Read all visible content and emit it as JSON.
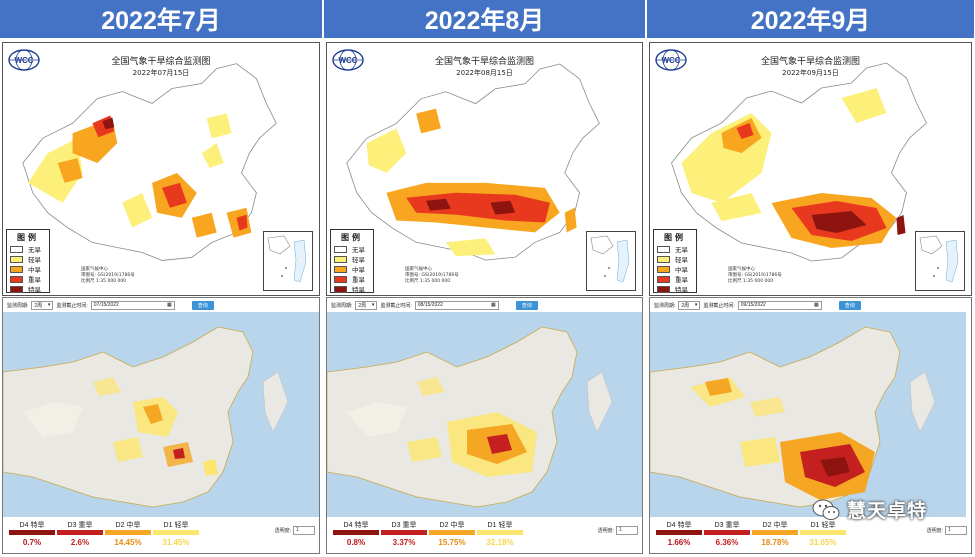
{
  "panels": [
    {
      "header": "2022年7月",
      "map_title": "全国气象干旱综合监测图",
      "map_date": "2022年07月15日",
      "credit": [
        "国家气候中心",
        "审图号: GS(2019)1786号",
        "比例尺 1:35 000 000"
      ],
      "form": {
        "label_period": "监测周期:",
        "period_value": "2周",
        "label_end": "监测截止时间:",
        "end_date": "07/15/2022",
        "query": "查询"
      },
      "bottom_values": [
        "0.7%",
        "2.6%",
        "14.45%",
        "31.45%"
      ]
    },
    {
      "header": "2022年8月",
      "map_title": "全国气象干旱综合监测图",
      "map_date": "2022年08月15日",
      "credit": [
        "国家气候中心",
        "审图号: GS(2019)1786号",
        "比例尺 1:35 000 000"
      ],
      "form": {
        "label_period": "监测周期:",
        "period_value": "2周",
        "label_end": "监测截止时间:",
        "end_date": "08/15/2022",
        "query": "查询"
      },
      "bottom_values": [
        "0.8%",
        "3.37%",
        "15.75%",
        "32.18%"
      ]
    },
    {
      "header": "2022年9月",
      "map_title": "全国气象干旱综合监测图",
      "map_date": "2022年09月15日",
      "credit": [
        "国家气候中心",
        "审图号: GS(2019)1786号",
        "比例尺 1:35 000 000"
      ],
      "form": {
        "label_period": "监测周期:",
        "period_value": "2周",
        "label_end": "监测截止时间:",
        "end_date": "09/15/2022",
        "query": "查询"
      },
      "bottom_values": [
        "1.66%",
        "6.36%",
        "18.78%",
        "31.65%"
      ]
    }
  ],
  "legend": {
    "title": "图例",
    "items": [
      {
        "label": "无旱",
        "color": "#ffffff"
      },
      {
        "label": "轻旱",
        "color": "#fdf07a"
      },
      {
        "label": "中旱",
        "color": "#f8a51f"
      },
      {
        "label": "重旱",
        "color": "#e8381d"
      },
      {
        "label": "特旱",
        "color": "#8e1410"
      }
    ]
  },
  "bottom_legend": [
    {
      "label": "D4 特旱",
      "color": "#8e1410",
      "value_color": "#b8141a"
    },
    {
      "label": "D3 重旱",
      "color": "#c42020",
      "value_color": "#c42020"
    },
    {
      "label": "D2 中旱",
      "color": "#f5a623",
      "value_color": "#e68a10"
    },
    {
      "label": "D1 轻旱",
      "color": "#fde66e",
      "value_color": "#f6d64a"
    }
  ],
  "transparency_label": "透明度:",
  "transparency_value": "1",
  "wcc_logo_text": "WCC",
  "watermark": "慧天卓特"
}
